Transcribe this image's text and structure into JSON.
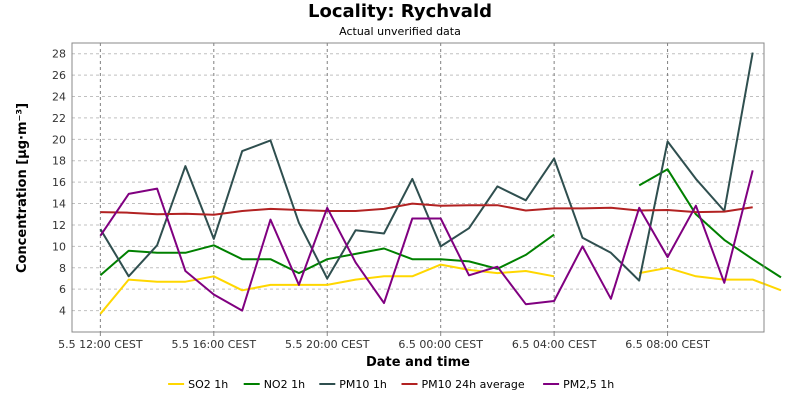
{
  "chart_data": {
    "type": "line",
    "title": "Locality: Rychvald",
    "subtitle": "Actual unverified data",
    "xlabel": "Date and time",
    "ylabel": "Concentration [µg·m⁻³]",
    "ylim": [
      2,
      29
    ],
    "yticks": [
      4,
      6,
      8,
      10,
      12,
      14,
      16,
      18,
      20,
      22,
      24,
      26,
      28
    ],
    "x_ticks": [
      {
        "x": 0,
        "label": "5.5 12:00 CEST"
      },
      {
        "x": 4,
        "label": "5.5 16:00 CEST"
      },
      {
        "x": 8,
        "label": "5.5 20:00 CEST"
      },
      {
        "x": 12,
        "label": "6.5 00:00 CEST"
      },
      {
        "x": 16,
        "label": "6.5 04:00 CEST"
      },
      {
        "x": 20,
        "label": "6.5 08:00 CEST"
      }
    ],
    "xlim": [
      -1,
      23.4
    ],
    "grid": true,
    "legend_position": "bottom",
    "series": [
      {
        "name": "SO2 1h",
        "color": "#ffd700",
        "values": [
          3.7,
          6.9,
          6.7,
          6.7,
          7.2,
          5.9,
          6.4,
          6.4,
          6.4,
          6.9,
          7.2,
          7.2,
          8.3,
          7.8,
          7.5,
          7.7,
          7.2,
          null,
          null,
          7.5,
          8.0,
          7.2,
          6.9,
          6.9,
          5.9
        ]
      },
      {
        "name": "NO2 1h",
        "color": "#008000",
        "values": [
          7.3,
          9.6,
          9.4,
          9.4,
          10.1,
          8.8,
          8.8,
          7.5,
          8.8,
          9.3,
          9.8,
          8.8,
          8.8,
          8.6,
          7.9,
          9.2,
          11.1,
          null,
          null,
          15.7,
          17.2,
          13.0,
          10.6,
          8.8,
          7.1
        ]
      },
      {
        "name": "PM10 1h",
        "color": "#2f4f4f",
        "values": [
          11.6,
          7.2,
          10.1,
          17.5,
          10.7,
          18.9,
          19.9,
          12.2,
          7.0,
          11.5,
          11.2,
          16.3,
          10.0,
          11.7,
          15.6,
          14.3,
          18.2,
          10.8,
          9.4,
          6.8,
          19.8,
          16.3,
          13.3,
          28.1,
          null
        ]
      },
      {
        "name": "PM10 24h average",
        "color": "#b22222",
        "values": [
          13.2,
          13.15,
          13.0,
          13.05,
          12.95,
          13.3,
          13.5,
          13.4,
          13.3,
          13.3,
          13.5,
          14.0,
          13.8,
          13.85,
          13.85,
          13.35,
          13.55,
          13.55,
          13.6,
          13.35,
          13.4,
          13.2,
          13.25,
          13.65,
          null
        ]
      },
      {
        "name": "PM2,5 1h",
        "color": "#800080",
        "values": [
          11.0,
          14.9,
          15.4,
          7.7,
          5.5,
          4.0,
          12.5,
          6.4,
          13.6,
          8.5,
          4.7,
          12.6,
          12.6,
          7.3,
          8.1,
          4.6,
          4.9,
          10.0,
          5.1,
          13.6,
          9.0,
          13.8,
          6.6,
          17.1,
          null
        ]
      }
    ]
  }
}
